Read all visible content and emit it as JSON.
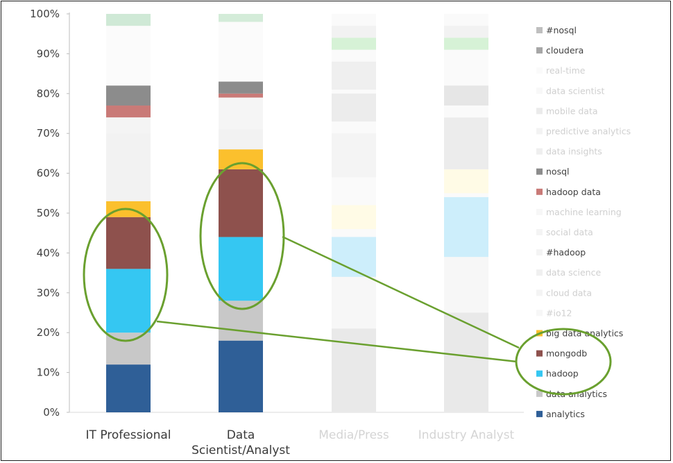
{
  "chart_data": {
    "type": "bar",
    "stacked": true,
    "title": "",
    "xlabel": "",
    "ylabel": "",
    "ylim": [
      0,
      100
    ],
    "y_ticks": [
      "0%",
      "10%",
      "20%",
      "30%",
      "40%",
      "50%",
      "60%",
      "70%",
      "80%",
      "90%",
      "100%"
    ],
    "grid": false,
    "legend_position": "right",
    "categories": [
      {
        "label": "IT Professional",
        "faded": false
      },
      {
        "label": "Data\nScientist/Analyst",
        "faded": false
      },
      {
        "label": "Media/Press",
        "faded": true
      },
      {
        "label": "Industry Analyst",
        "faded": true
      }
    ],
    "series": [
      {
        "name": "analytics",
        "color": "#2f5f97",
        "values": [
          12,
          18,
          0,
          0
        ]
      },
      {
        "name": "data analytics",
        "color": "#c8c8c8",
        "values": [
          8,
          10,
          21,
          25
        ]
      },
      {
        "name": "hadoop",
        "color": "#35c7f2",
        "values": [
          16,
          16,
          0,
          0
        ]
      },
      {
        "name": "mongodb",
        "color": "#8e514d",
        "values": [
          13,
          17,
          0,
          0
        ]
      },
      {
        "name": "big data analytics",
        "color": "#fbc02d",
        "values": [
          4,
          5,
          0,
          0
        ]
      },
      {
        "name": "#io12",
        "color": "#f2f2f2",
        "values": [
          21,
          7,
          13,
          14
        ]
      },
      {
        "name": "cloud data",
        "color": "#ececec",
        "values": [
          0,
          4,
          1,
          0
        ]
      },
      {
        "name": "data science",
        "color": "#e6e6e6",
        "values": [
          0,
          0,
          0,
          0
        ]
      },
      {
        "name": "#hadoop",
        "color": "#f4f4f4",
        "values": [
          0,
          0,
          0,
          0
        ]
      },
      {
        "name": "social data",
        "color": "#ececec",
        "values": [
          0,
          0,
          0,
          0
        ]
      },
      {
        "name": "machine learning",
        "color": "#f2f2f2",
        "values": [
          0,
          0,
          0,
          0
        ]
      },
      {
        "name": "hadoop data",
        "color": "#c97a77",
        "values": [
          3,
          3,
          0,
          0
        ]
      },
      {
        "name": "nosql",
        "color": "#8c8c8c",
        "values": [
          5,
          3,
          0,
          0
        ]
      },
      {
        "name": "data insights",
        "color": "#e4e4e4",
        "values": [
          0,
          0,
          0,
          0
        ]
      },
      {
        "name": "predictive analytics",
        "color": "#ebebeb",
        "values": [
          0,
          0,
          0,
          0
        ]
      },
      {
        "name": "mobile data",
        "color": "#dedede",
        "values": [
          0,
          0,
          0,
          0
        ]
      },
      {
        "name": "data scientist",
        "color": "#f3f3f3",
        "values": [
          0,
          0,
          0,
          0
        ]
      },
      {
        "name": "real-time",
        "color": "#f7f7f7",
        "values": [
          0,
          0,
          0,
          0
        ]
      },
      {
        "name": "cloudera",
        "color": "#a6a6a6",
        "values": [
          0,
          0,
          0,
          0
        ]
      },
      {
        "name": "#nosql",
        "color": "#bfbfbf",
        "values": [
          0,
          0,
          0,
          0
        ]
      }
    ],
    "legend": [
      {
        "name": "#nosql",
        "color": "#bfbfbf",
        "faded": false
      },
      {
        "name": "cloudera",
        "color": "#a6a6a6",
        "faded": false
      },
      {
        "name": "real-time",
        "color": "#f7f7f7",
        "faded": true
      },
      {
        "name": "data scientist",
        "color": "#f3f3f3",
        "faded": true
      },
      {
        "name": "mobile data",
        "color": "#dedede",
        "faded": true
      },
      {
        "name": "predictive analytics",
        "color": "#ebebeb",
        "faded": true
      },
      {
        "name": "data insights",
        "color": "#e4e4e4",
        "faded": true
      },
      {
        "name": "nosql",
        "color": "#8c8c8c",
        "faded": false
      },
      {
        "name": "hadoop data",
        "color": "#c97a77",
        "faded": false
      },
      {
        "name": "machine learning",
        "color": "#f2f2f2",
        "faded": true
      },
      {
        "name": "social data",
        "color": "#ececec",
        "faded": true
      },
      {
        "name": "#hadoop",
        "color": "#f4f4f4",
        "faded": false
      },
      {
        "name": "data science",
        "color": "#e6e6e6",
        "faded": true
      },
      {
        "name": "cloud data",
        "color": "#ececec",
        "faded": true
      },
      {
        "name": "#io12",
        "color": "#f2f2f2",
        "faded": true
      },
      {
        "name": "big data analytics",
        "color": "#fbc02d",
        "faded": false
      },
      {
        "name": "mongodb",
        "color": "#8e514d",
        "faded": false
      },
      {
        "name": "hadoop",
        "color": "#35c7f2",
        "faded": false
      },
      {
        "name": "data analytics",
        "color": "#c8c8c8",
        "faded": false
      },
      {
        "name": "analytics",
        "color": "#2f5f97",
        "faded": false
      }
    ],
    "faded_segments": [
      {
        "category": "Media/Press",
        "start": 34,
        "end": 44,
        "color": "#cdeefb"
      },
      {
        "category": "Media/Press",
        "start": 46,
        "end": 52,
        "color": "#fffbe6"
      },
      {
        "category": "Media/Press",
        "start": 59,
        "end": 70,
        "color": "#f4f4f4"
      },
      {
        "category": "Media/Press",
        "start": 73,
        "end": 80,
        "color": "#ececec"
      },
      {
        "category": "Media/Press",
        "start": 81,
        "end": 88,
        "color": "#efefef"
      },
      {
        "category": "Media/Press",
        "start": 91,
        "end": 94,
        "color": "#d6f2d6"
      },
      {
        "category": "Media/Press",
        "start": 94,
        "end": 97,
        "color": "#f2f2f2"
      },
      {
        "category": "Industry Analyst",
        "start": 39,
        "end": 54,
        "color": "#cdeefb"
      },
      {
        "category": "Industry Analyst",
        "start": 55,
        "end": 61,
        "color": "#fffbe6"
      },
      {
        "category": "Industry Analyst",
        "start": 61,
        "end": 74,
        "color": "#ececec"
      },
      {
        "category": "Industry Analyst",
        "start": 77,
        "end": 82,
        "color": "#e6e6e6"
      },
      {
        "category": "Industry Analyst",
        "start": 91,
        "end": 94,
        "color": "#d6f2d6"
      },
      {
        "category": "Industry Analyst",
        "start": 94,
        "end": 97,
        "color": "#f2f2f2"
      },
      {
        "category": "IT Professional",
        "start": 97,
        "end": 100,
        "color": "#cfe9d6"
      },
      {
        "category": "IT Professional",
        "start": 70,
        "end": 74,
        "color": "#f4f4f4"
      },
      {
        "category": "Data\nScientist/Analyst",
        "start": 98,
        "end": 100,
        "color": "#d4ecd9"
      },
      {
        "category": "Data\nScientist/Analyst",
        "start": 71,
        "end": 79,
        "color": "#f5f5f5"
      }
    ],
    "annotations": {
      "highlight_color": "#6aa02f",
      "highlighted_series": [
        "mongodb",
        "hadoop"
      ]
    }
  }
}
